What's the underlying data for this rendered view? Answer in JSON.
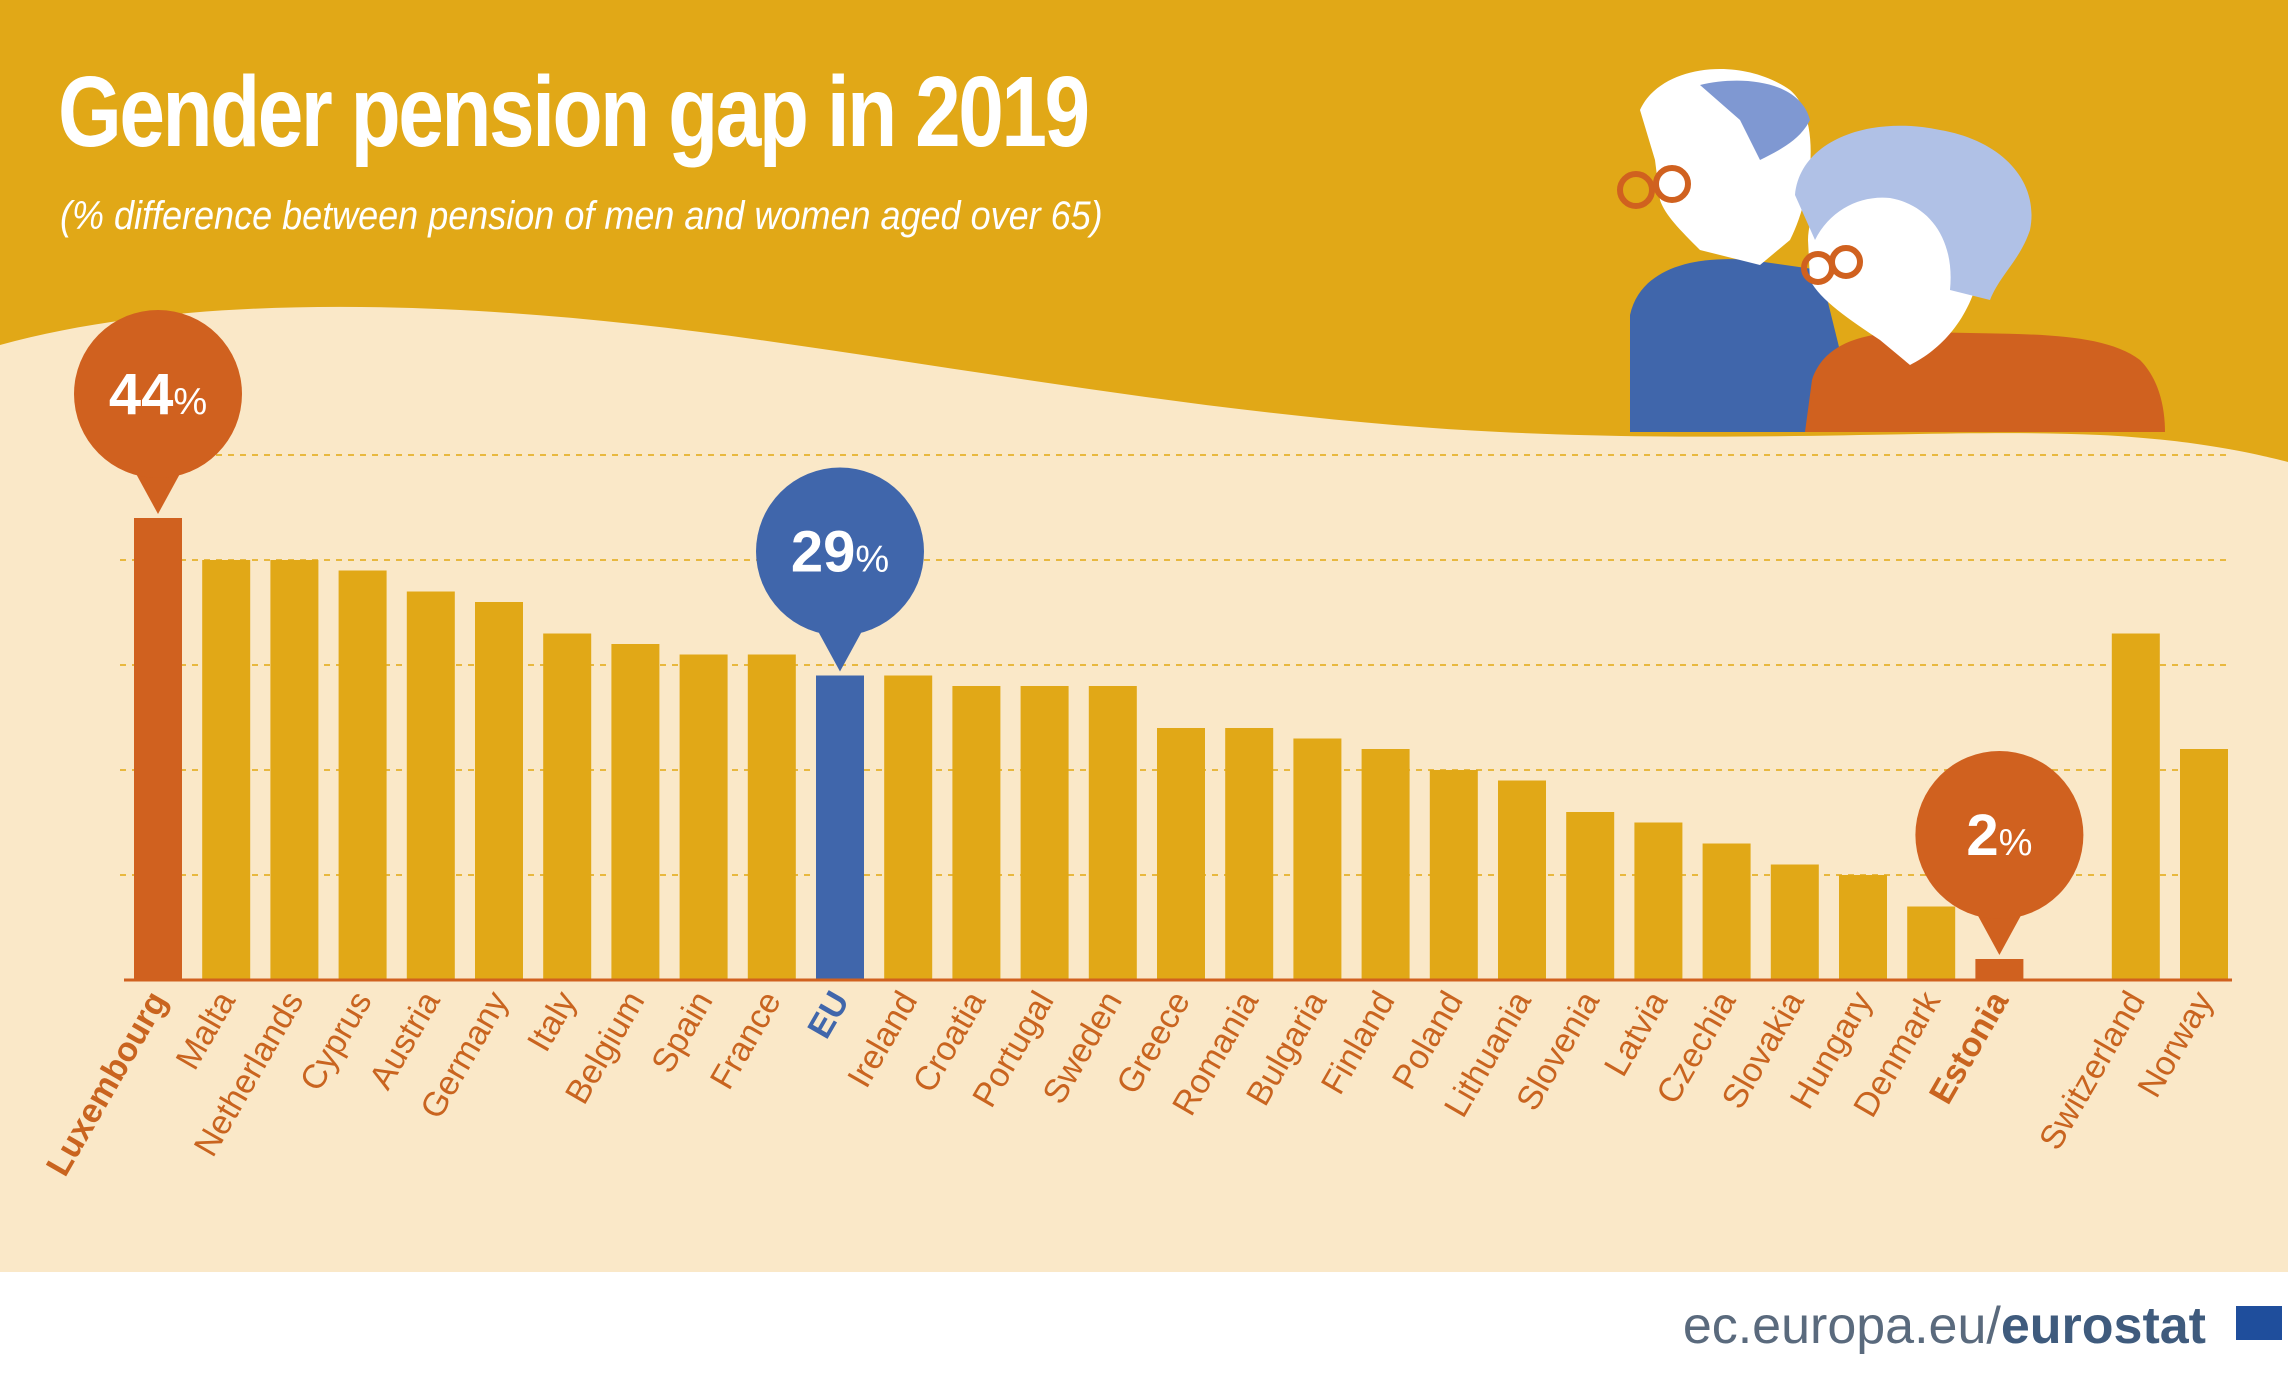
{
  "header": {
    "title": "Gender pension gap in 2019",
    "subtitle": "(% difference between pension of men and women aged over 65)"
  },
  "footer": {
    "source_domain": "ec.europa.eu/",
    "source_brand": "eurostat"
  },
  "colors": {
    "banner": "#E1A817",
    "panel": "#FAE8C8",
    "bar": "#E1A817",
    "highlight_orange": "#D0611F",
    "highlight_blue": "#4066AB",
    "label_default": "#C9641F",
    "label_eu": "#4066AB",
    "gridline": "#E8B83F"
  },
  "chart_data": {
    "type": "bar",
    "title": "Gender pension gap in 2019",
    "subtitle": "(% difference between pension of men and women aged over 65)",
    "unit": "%",
    "categories": [
      "Luxembourg",
      "Malta",
      "Netherlands",
      "Cyprus",
      "Austria",
      "Germany",
      "Italy",
      "Belgium",
      "Spain",
      "France",
      "EU",
      "Ireland",
      "Croatia",
      "Portugal",
      "Sweden",
      "Greece",
      "Romania",
      "Bulgaria",
      "Finland",
      "Poland",
      "Lithuania",
      "Slovenia",
      "Latvia",
      "Czechia",
      "Slovakia",
      "Hungary",
      "Denmark",
      "Estonia",
      "",
      "Switzerland",
      "Norway"
    ],
    "values": [
      44,
      40,
      40,
      39,
      37,
      36,
      33,
      32,
      31,
      31,
      29,
      29,
      28,
      28,
      28,
      24,
      24,
      23,
      22,
      20,
      19,
      16,
      15,
      13,
      11,
      10,
      7,
      2,
      null,
      33,
      22
    ],
    "highlights": [
      {
        "category": "Luxembourg",
        "label": "44",
        "unit": "%",
        "color": "orange"
      },
      {
        "category": "EU",
        "label": "29",
        "unit": "%",
        "color": "blue"
      },
      {
        "category": "Estonia",
        "label": "2",
        "unit": "%",
        "color": "orange"
      }
    ],
    "ylim": [
      0,
      50
    ],
    "grid": true,
    "gridline_values": [
      10,
      20,
      30,
      40,
      50
    ],
    "legend": "none"
  }
}
